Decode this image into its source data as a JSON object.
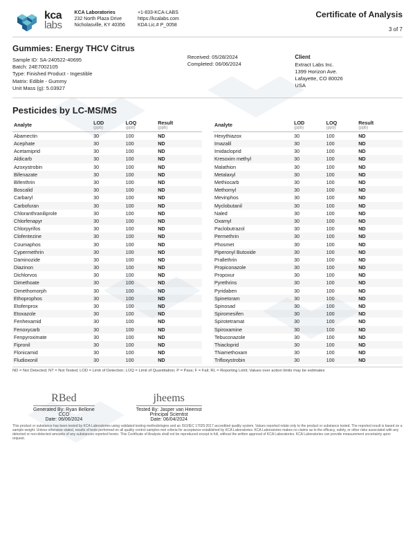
{
  "header": {
    "logo_name": "kca",
    "logo_sub": "labs",
    "lab": {
      "name": "KCA Laboratories",
      "addr1": "232 North Plaza Drive",
      "addr2": "Nicholasville, KY 40356",
      "phone": "+1-833-KCA-LABS",
      "web": "https://kcalabs.com",
      "lic": "KDA Lic.# P_0058"
    },
    "coa_title": "Certificate of Analysis",
    "page_no": "3 of 7"
  },
  "sample": {
    "product_title": "Gummies: Energy THCV Citrus",
    "sample_id_label": "Sample ID:",
    "sample_id": "SA-240522-40695",
    "batch_label": "Batch:",
    "batch": "24E7002105",
    "type_label": "Type:",
    "type": "Finished Product - Ingestible",
    "matrix_label": "Matrix:",
    "matrix": "Edible - Gummy",
    "unit_mass_label": "Unit Mass (g):",
    "unit_mass": "5.03927",
    "received_label": "Received:",
    "received": "05/28/2024",
    "completed_label": "Completed:",
    "completed": "06/06/2024"
  },
  "client": {
    "header": "Client",
    "name": "Extract Labs Inc.",
    "addr1": "1399 Horizon Ave.",
    "addr2": "Lafayette, CO 80026",
    "country": "USA"
  },
  "section_title": "Pesticides by LC-MS/MS",
  "columns": {
    "analyte": "Analyte",
    "lod": "LOD",
    "loq": "LOQ",
    "result": "Result",
    "unit": "(ppb)"
  },
  "lod_default": "30",
  "loq_default": "100",
  "result_default": "ND",
  "left_analytes": [
    "Abamectin",
    "Acephate",
    "Acetamiprid",
    "Aldicarb",
    "Azoxystrobin",
    "Bifenazate",
    "Bifenthrin",
    "Boscalid",
    "Carbaryl",
    "Carbofuran",
    "Chloranthraniliprole",
    "Chlorfenapyr",
    "Chlorpyrifos",
    "Clofentezine",
    "Coumaphos",
    "Cypermethrin",
    "Daminozide",
    "Diazinon",
    "Dichlorvos",
    "Dimethoate",
    "Dimethomorph",
    "Ethoprophos",
    "Etofenprox",
    "Etoxazole",
    "Fenhexamid",
    "Fenoxycarb",
    "Fenpyroximate",
    "Fipronil",
    "Flonicamid",
    "Fludioxonil"
  ],
  "right_analytes": [
    "Hexythiazox",
    "Imazalil",
    "Imidacloprid",
    "Kresoxim methyl",
    "Malathion",
    "Metalaxyl",
    "Methiocarb",
    "Methomyl",
    "Mevinphos",
    "Myclobutanil",
    "Naled",
    "Oxamyl",
    "Paclobutrazol",
    "Permethrin",
    "Phosmet",
    "Piperonyl Butoxide",
    "Prallethrin",
    "Propiconazole",
    "Propoxur",
    "Pyrethrins",
    "Pyridaben",
    "Spinetoram",
    "Spinosad",
    "Spiromesifen",
    "Spirotetramat",
    "Spiroxamine",
    "Tebuconazole",
    "Thiacloprid",
    "Thiamethoxam",
    "Trifloxystrobin"
  ],
  "legend": "ND = Not Detected; NT = Not Tested; LOD = Limit of Detection; LOQ = Limit of Quantitation; P = Pass; F = Fail; RL = Reporting Limit; Values over action limits may be estimates",
  "signatures": {
    "gen_sig": "RBed",
    "gen_by_label": "Generated By:",
    "gen_by": "Ryan Bellone",
    "gen_title": "CCO",
    "gen_date_label": "Date:",
    "gen_date": "06/06/2024",
    "test_sig": "jheems",
    "test_by_label": "Tested By:",
    "test_by": "Jasper van Heemst",
    "test_title": "Principal Scientist",
    "test_date_label": "Date:",
    "test_date": "06/04/2024"
  },
  "disclaimer": "This product or substance has been tested by KCA Laboratories using validated testing methodologies and an ISO/IEC 17025:2017 accredited quality system. Values reported relate only to the product or substance tested. The reported result is based on a sample weight. Unless otherwise stated, results of tests performed on all quality control samples met criteria for acceptance established by KCA Laboratories. KCA Laboratories makes no claims as to the efficacy, safety, or other risks associated with any detected or non-detected amounts of any substances reported herein. This Certificate of Analysis shall not be reproduced except in full, without the written approval of KCA Laboratories. KCA Laboratories can provide measurement uncertainty upon request.",
  "colors": {
    "logo_cube_light": "#6ec1d6",
    "logo_cube_dark": "#1b5d8a",
    "stripe": "rgba(200,200,200,0.18)"
  }
}
